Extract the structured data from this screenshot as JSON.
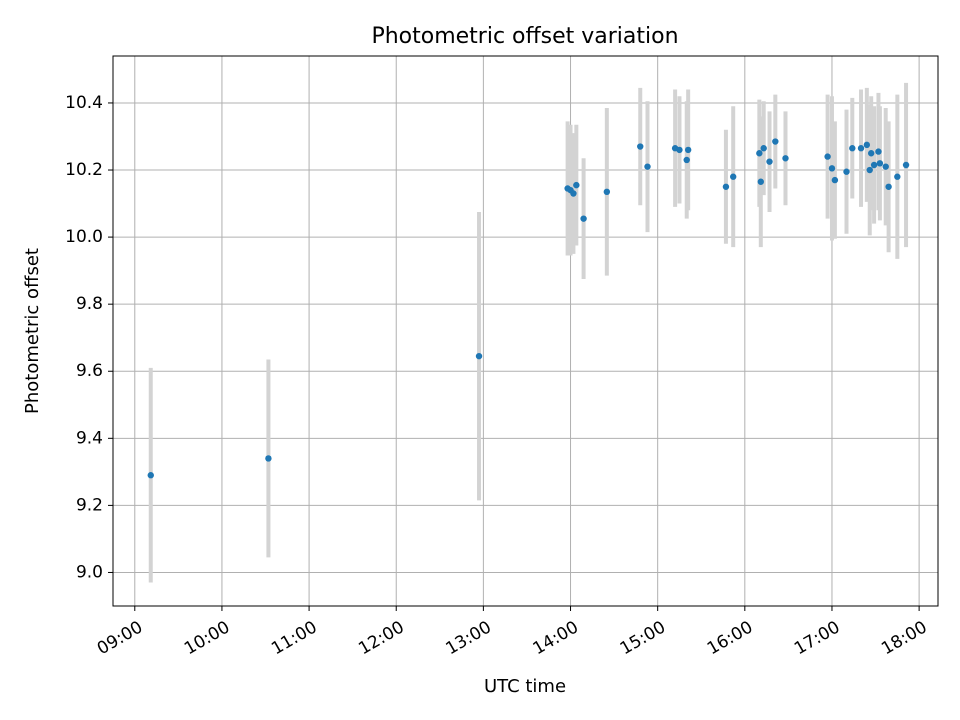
{
  "chart_data": {
    "type": "scatter",
    "title": "Photometric offset variation",
    "xlabel": "UTC time",
    "ylabel": "Photometric offset",
    "x_ticks": [
      "09:00",
      "10:00",
      "11:00",
      "12:00",
      "13:00",
      "14:00",
      "15:00",
      "16:00",
      "17:00",
      "18:00"
    ],
    "y_ticks": [
      "9.0",
      "9.2",
      "9.4",
      "9.6",
      "9.8",
      "10.0",
      "10.2",
      "10.4"
    ],
    "xlim": [
      "08:45",
      "18:13"
    ],
    "ylim": [
      8.9,
      10.54
    ],
    "grid": true,
    "colors": {
      "marker": "#1f77b4",
      "errorbar": "#d3d3d3",
      "grid": "#b0b0b0"
    },
    "points": [
      {
        "x": "09:11",
        "y": 9.29,
        "err": 0.32
      },
      {
        "x": "10:32",
        "y": 9.34,
        "err": 0.295
      },
      {
        "x": "12:57",
        "y": 9.645,
        "err": 0.43
      },
      {
        "x": "13:58",
        "y": 10.145,
        "err": 0.2
      },
      {
        "x": "14:00",
        "y": 10.14,
        "err": 0.195
      },
      {
        "x": "14:02",
        "y": 10.13,
        "err": 0.18
      },
      {
        "x": "14:04",
        "y": 10.155,
        "err": 0.18
      },
      {
        "x": "14:09",
        "y": 10.055,
        "err": 0.18
      },
      {
        "x": "14:25",
        "y": 10.135,
        "err": 0.25
      },
      {
        "x": "14:48",
        "y": 10.27,
        "err": 0.175
      },
      {
        "x": "14:53",
        "y": 10.21,
        "err": 0.195
      },
      {
        "x": "15:12",
        "y": 10.265,
        "err": 0.175
      },
      {
        "x": "15:15",
        "y": 10.26,
        "err": 0.16
      },
      {
        "x": "15:20",
        "y": 10.23,
        "err": 0.175
      },
      {
        "x": "15:21",
        "y": 10.26,
        "err": 0.18
      },
      {
        "x": "15:47",
        "y": 10.15,
        "err": 0.17
      },
      {
        "x": "15:52",
        "y": 10.18,
        "err": 0.21
      },
      {
        "x": "16:10",
        "y": 10.25,
        "err": 0.16
      },
      {
        "x": "16:11",
        "y": 10.165,
        "err": 0.195
      },
      {
        "x": "16:13",
        "y": 10.265,
        "err": 0.14
      },
      {
        "x": "16:17",
        "y": 10.225,
        "err": 0.15
      },
      {
        "x": "16:21",
        "y": 10.285,
        "err": 0.14
      },
      {
        "x": "16:28",
        "y": 10.235,
        "err": 0.14
      },
      {
        "x": "16:57",
        "y": 10.24,
        "err": 0.185
      },
      {
        "x": "17:00",
        "y": 10.205,
        "err": 0.215
      },
      {
        "x": "17:02",
        "y": 10.17,
        "err": 0.175
      },
      {
        "x": "17:10",
        "y": 10.195,
        "err": 0.185
      },
      {
        "x": "17:14",
        "y": 10.265,
        "err": 0.15
      },
      {
        "x": "17:20",
        "y": 10.265,
        "err": 0.175
      },
      {
        "x": "17:24",
        "y": 10.275,
        "err": 0.17
      },
      {
        "x": "17:26",
        "y": 10.2,
        "err": 0.195
      },
      {
        "x": "17:27",
        "y": 10.25,
        "err": 0.17
      },
      {
        "x": "17:29",
        "y": 10.215,
        "err": 0.175
      },
      {
        "x": "17:32",
        "y": 10.255,
        "err": 0.175
      },
      {
        "x": "17:33",
        "y": 10.22,
        "err": 0.17
      },
      {
        "x": "17:37",
        "y": 10.21,
        "err": 0.175
      },
      {
        "x": "17:39",
        "y": 10.15,
        "err": 0.195
      },
      {
        "x": "17:45",
        "y": 10.18,
        "err": 0.245
      },
      {
        "x": "17:51",
        "y": 10.215,
        "err": 0.245
      }
    ]
  }
}
